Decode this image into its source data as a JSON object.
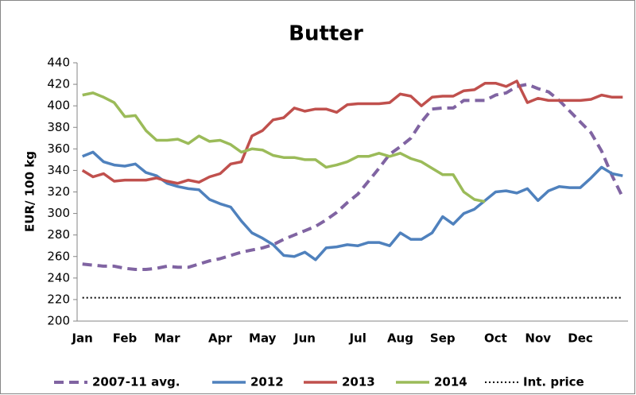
{
  "chart_data": {
    "type": "line",
    "title": "Butter",
    "ylabel": "EUR/ 100 kg",
    "categories": [
      "Jan",
      null,
      null,
      null,
      "Feb",
      null,
      null,
      null,
      "Mar",
      null,
      null,
      null,
      null,
      "Apr",
      null,
      null,
      null,
      "May",
      null,
      null,
      null,
      "Jun",
      null,
      null,
      null,
      null,
      "Jul",
      null,
      null,
      null,
      "Aug",
      null,
      null,
      null,
      "Sep",
      null,
      null,
      null,
      null,
      "Oct",
      null,
      null,
      null,
      "Nov",
      null,
      null,
      null,
      "Dec",
      null,
      null,
      null,
      null
    ],
    "series": [
      {
        "name": "2007-11 avg.",
        "color": "#8064a2",
        "dash": "dashed",
        "values": [
          253,
          252,
          251,
          251,
          249,
          248,
          248,
          249,
          251,
          250,
          250,
          253,
          256,
          258,
          261,
          264,
          266,
          268,
          271,
          276,
          280,
          284,
          288,
          294,
          301,
          310,
          318,
          330,
          342,
          355,
          362,
          370,
          385,
          397,
          398,
          398,
          405,
          405,
          405,
          410,
          412,
          418,
          420,
          416,
          413,
          405,
          395,
          385,
          375,
          358,
          335,
          315
        ]
      },
      {
        "name": "2012",
        "color": "#4f81bd",
        "dash": "solid",
        "values": [
          353,
          357,
          348,
          345,
          344,
          346,
          338,
          335,
          328,
          325,
          323,
          322,
          313,
          309,
          306,
          293,
          282,
          277,
          271,
          261,
          260,
          264,
          257,
          268,
          269,
          271,
          270,
          273,
          273,
          270,
          282,
          276,
          276,
          282,
          297,
          290,
          300,
          304,
          312,
          320,
          321,
          319,
          323,
          312,
          321,
          325,
          324,
          324,
          333,
          343,
          337,
          335
        ]
      },
      {
        "name": "2013",
        "color": "#c0504d",
        "dash": "solid",
        "values": [
          340,
          334,
          337,
          330,
          331,
          331,
          331,
          333,
          330,
          328,
          331,
          329,
          334,
          337,
          346,
          348,
          372,
          377,
          387,
          389,
          398,
          395,
          397,
          397,
          394,
          401,
          402,
          402,
          402,
          403,
          411,
          409,
          400,
          408,
          409,
          409,
          414,
          415,
          421,
          421,
          418,
          423,
          403,
          407,
          405,
          405,
          405,
          405,
          406,
          410,
          408,
          408
        ]
      },
      {
        "name": "2014",
        "color": "#9bbb59",
        "dash": "solid",
        "values": [
          410,
          412,
          408,
          403,
          390,
          391,
          377,
          368,
          368,
          369,
          365,
          372,
          367,
          368,
          364,
          357,
          360,
          359,
          354,
          352,
          352,
          350,
          350,
          343,
          345,
          348,
          353,
          353,
          356,
          353,
          356,
          351,
          348,
          342,
          336,
          336,
          320,
          313,
          311,
          null,
          null,
          null,
          null,
          null,
          null,
          null,
          null,
          null,
          null,
          null,
          null,
          null
        ]
      },
      {
        "name": "Int. price",
        "color": "#000000",
        "dash": "dotted",
        "values": [
          221.7,
          221.7,
          221.7,
          221.7,
          221.7,
          221.7,
          221.7,
          221.7,
          221.7,
          221.7,
          221.7,
          221.7,
          221.7,
          221.7,
          221.7,
          221.7,
          221.7,
          221.7,
          221.7,
          221.7,
          221.7,
          221.7,
          221.7,
          221.7,
          221.7,
          221.7,
          221.7,
          221.7,
          221.7,
          221.7,
          221.7,
          221.7,
          221.7,
          221.7,
          221.7,
          221.7,
          221.7,
          221.7,
          221.7,
          221.7,
          221.7,
          221.7,
          221.7,
          221.7,
          221.7,
          221.7,
          221.7,
          221.7,
          221.7,
          221.7,
          221.7,
          221.7
        ]
      }
    ],
    "ylim": [
      200,
      440
    ],
    "yticks": [
      200,
      220,
      240,
      260,
      280,
      300,
      320,
      340,
      360,
      380,
      400,
      420,
      440
    ],
    "grid": false,
    "legend": "bottom"
  }
}
